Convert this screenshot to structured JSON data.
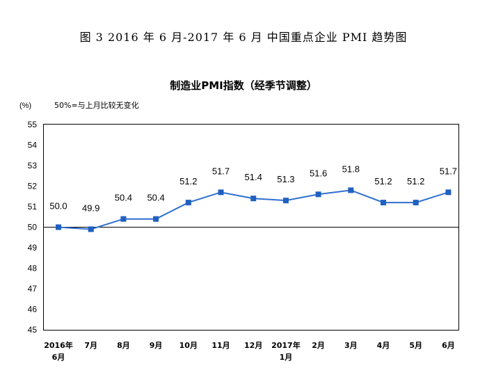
{
  "figure_title": "图 3  2016 年 6 月-2017 年 6 月  中国重点企业 PMI 趋势图",
  "chart_data": {
    "type": "line",
    "title": "制造业PMI指数（经季节调整）",
    "ylabel": "(%)",
    "note": "50%=与上月比较无变化",
    "ylim": [
      45,
      55
    ],
    "yticks": [
      "55",
      "54",
      "53",
      "52",
      "51",
      "50",
      "49",
      "48",
      "47",
      "46",
      "45"
    ],
    "reference_line": 50,
    "categories": [
      [
        "2016年",
        "6月"
      ],
      [
        "7月"
      ],
      [
        "8月"
      ],
      [
        "9月"
      ],
      [
        "10月"
      ],
      [
        "11月"
      ],
      [
        "12月"
      ],
      [
        "2017年",
        "1月"
      ],
      [
        "2月"
      ],
      [
        "3月"
      ],
      [
        "4月"
      ],
      [
        "5月"
      ],
      [
        "6月"
      ]
    ],
    "values": [
      50.0,
      49.9,
      50.4,
      50.4,
      51.2,
      51.7,
      51.4,
      51.3,
      51.6,
      51.8,
      51.2,
      51.2,
      51.7
    ],
    "data_labels": [
      "50.0",
      "49.9",
      "50.4",
      "50.4",
      "51.2",
      "51.7",
      "51.4",
      "51.3",
      "51.6",
      "51.8",
      "51.2",
      "51.2",
      "51.7"
    ],
    "grid": false,
    "colors": {
      "line": "#2E6FD0",
      "marker": "#2060C0",
      "axis": "#000000"
    }
  }
}
